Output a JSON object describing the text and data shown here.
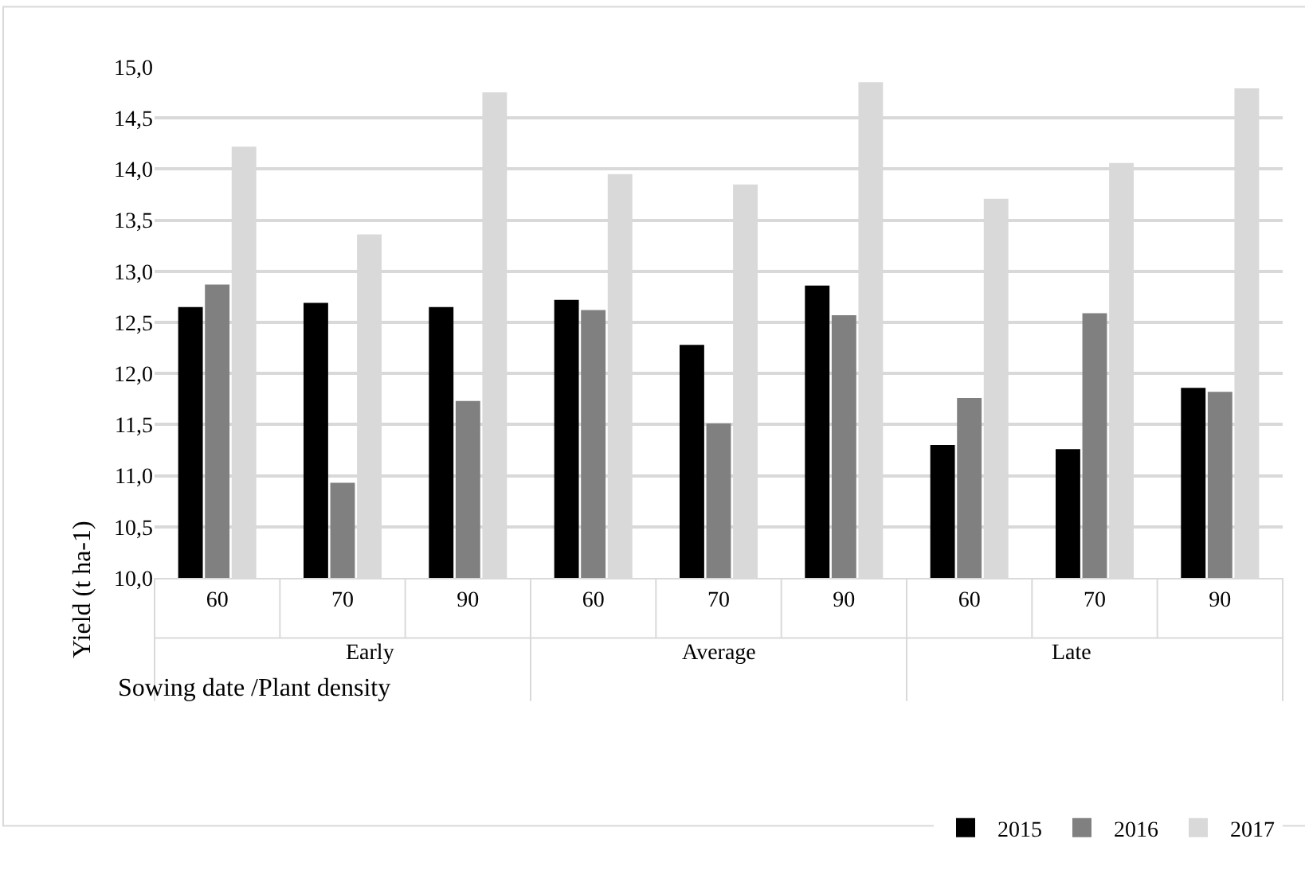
{
  "chart_data": {
    "type": "bar",
    "ylabel": "Yield (t ha-1)",
    "categories": [
      "60",
      "70",
      "90",
      "60",
      "70",
      "90",
      "60",
      "70",
      "90"
    ],
    "series": [
      {
        "name": "2015",
        "color": "#000000",
        "values": [
          12.65,
          12.69,
          12.65,
          12.72,
          12.28,
          12.86,
          11.3,
          11.26,
          11.86
        ]
      },
      {
        "name": "2016",
        "color": "#808080",
        "values": [
          12.87,
          10.93,
          11.73,
          12.62,
          11.51,
          12.57,
          11.76,
          12.59,
          11.82
        ]
      },
      {
        "name": "2017",
        "color": "#d9d9d9",
        "values": [
          14.22,
          13.36,
          14.75,
          13.95,
          13.85,
          14.85,
          13.71,
          14.06,
          14.79
        ]
      }
    ],
    "annotations": [
      "Early",
      "Average",
      "Late",
      "Sowing date /Plant density"
    ],
    "ylim": [
      10,
      15
    ],
    "yticks": [
      {
        "value": 10,
        "label": "10,0"
      },
      {
        "value": 10.5,
        "label": "10,5"
      },
      {
        "value": 11,
        "label": "11,0"
      },
      {
        "value": 11.5,
        "label": "11,5"
      },
      {
        "value": 12,
        "label": "12,0"
      },
      {
        "value": 12.5,
        "label": "12,5"
      },
      {
        "value": 13,
        "label": "13,0"
      },
      {
        "value": 13.5,
        "label": "13,5"
      },
      {
        "value": 14,
        "label": "14,0"
      },
      {
        "value": 14.5,
        "label": "14,5"
      },
      {
        "value": 15,
        "label": "15,0"
      }
    ],
    "grid": "y",
    "legend": "bottom right"
  }
}
